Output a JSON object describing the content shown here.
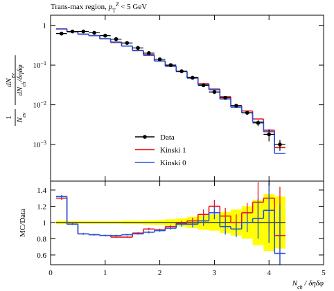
{
  "chart_data": [
    {
      "type": "histogram",
      "title": [
        "Trans-max region, ",
        "p",
        "T",
        "Z",
        " < 5 GeV"
      ],
      "ylabel": {
        "num1": "1",
        "den1": [
          "N",
          "ev"
        ],
        "num2": [
          "dN",
          "ev"
        ],
        "den2": [
          "dN",
          "ch",
          "/δηδφ"
        ]
      },
      "bins": [
        0.1,
        0.3,
        0.5,
        0.7,
        0.9,
        1.1,
        1.3,
        1.5,
        1.7,
        1.9,
        2.1,
        2.3,
        2.5,
        2.7,
        2.9,
        3.1,
        3.3,
        3.5,
        3.7,
        3.9,
        4.1,
        4.3
      ],
      "log_y": true,
      "xlim": [
        0,
        5
      ],
      "ylim": [
        0.00012,
        1.8
      ],
      "yticks": [
        {
          "value": 0.001,
          "label": "10",
          "exponent": "−3"
        },
        {
          "value": 0.01,
          "label": "10",
          "exponent": "−2"
        },
        {
          "value": 0.1,
          "label": "10",
          "exponent": "−1"
        },
        1
      ],
      "legend": "lower center",
      "series": [
        {
          "name": "Data",
          "color": "#000000",
          "style": "points",
          "values": [
            0.62,
            0.7,
            0.7,
            0.65,
            0.55,
            0.45,
            0.36,
            0.27,
            0.2,
            0.14,
            0.1,
            0.07,
            0.048,
            0.031,
            0.021,
            0.015,
            0.0095,
            0.0063,
            0.0035,
            0.0018,
            0.001
          ],
          "errors": [
            0.01,
            0.01,
            0.01,
            0.01,
            0.01,
            0.008,
            0.006,
            0.005,
            0.004,
            0.003,
            0.002,
            0.0015,
            0.001,
            0.001,
            0.001,
            0.001,
            0.0008,
            0.0007,
            0.0006,
            0.0006,
            0.0003
          ]
        },
        {
          "name": "Kinski 1",
          "color": "#e8191e",
          "style": "step",
          "values": [
            0.81,
            0.69,
            0.6,
            0.55,
            0.46,
            0.37,
            0.3,
            0.235,
            0.184,
            0.127,
            0.095,
            0.069,
            0.049,
            0.034,
            0.025,
            0.016,
            0.0095,
            0.007,
            0.0044,
            0.0023,
            0.00084
          ]
        },
        {
          "name": "Kinski 0",
          "color": "#2255dd",
          "style": "step",
          "values": [
            0.82,
            0.69,
            0.6,
            0.55,
            0.46,
            0.38,
            0.3,
            0.23,
            0.176,
            0.126,
            0.093,
            0.069,
            0.047,
            0.032,
            0.024,
            0.014,
            0.0087,
            0.0063,
            0.0037,
            0.0021,
            0.0006
          ]
        }
      ]
    },
    {
      "type": "ratio",
      "ylabel": "MC/Data",
      "xlabel": [
        "N",
        "ch",
        " / δηδφ"
      ],
      "xlim": [
        0,
        5
      ],
      "xticks": [
        0,
        1,
        2,
        3,
        4,
        5
      ],
      "ylim": [
        0.48,
        1.51
      ],
      "yticks": [
        0.6,
        0.8,
        1,
        1.2,
        1.4
      ],
      "reference": 1,
      "band_color": "#ffff00",
      "band": [
        0.02,
        0.015,
        0.015,
        0.015,
        0.015,
        0.015,
        0.02,
        0.02,
        0.025,
        0.03,
        0.04,
        0.05,
        0.07,
        0.09,
        0.1,
        0.13,
        0.16,
        0.2,
        0.28,
        0.35,
        0.32
      ],
      "series": [
        {
          "name": "Kinski 1",
          "color": "#e8191e",
          "values": [
            1.3,
            0.98,
            0.86,
            0.85,
            0.84,
            0.82,
            0.82,
            0.87,
            0.92,
            0.91,
            0.95,
            0.99,
            1.02,
            1.1,
            1.2,
            1.08,
            1.0,
            1.12,
            1.25,
            1.3,
            0.84
          ],
          "errors": [
            0.02,
            0.01,
            0.01,
            0.01,
            0.01,
            0.01,
            0.01,
            0.01,
            0.015,
            0.015,
            0.02,
            0.03,
            0.04,
            0.06,
            0.08,
            0.1,
            0.1,
            0.12,
            0.25,
            0.4,
            0.6
          ]
        },
        {
          "name": "Kinski 0",
          "color": "#2255dd",
          "values": [
            1.32,
            0.98,
            0.86,
            0.85,
            0.84,
            0.84,
            0.85,
            0.86,
            0.88,
            0.9,
            0.93,
            0.98,
            0.98,
            1.02,
            1.12,
            0.95,
            0.92,
            1.0,
            1.05,
            1.15,
            0.62
          ],
          "errors": [
            0.02,
            0.01,
            0.01,
            0.01,
            0.01,
            0.01,
            0.01,
            0.01,
            0.015,
            0.015,
            0.02,
            0.03,
            0.04,
            0.06,
            0.08,
            0.1,
            0.1,
            0.12,
            0.25,
            0.4,
            0.6
          ]
        }
      ]
    }
  ]
}
